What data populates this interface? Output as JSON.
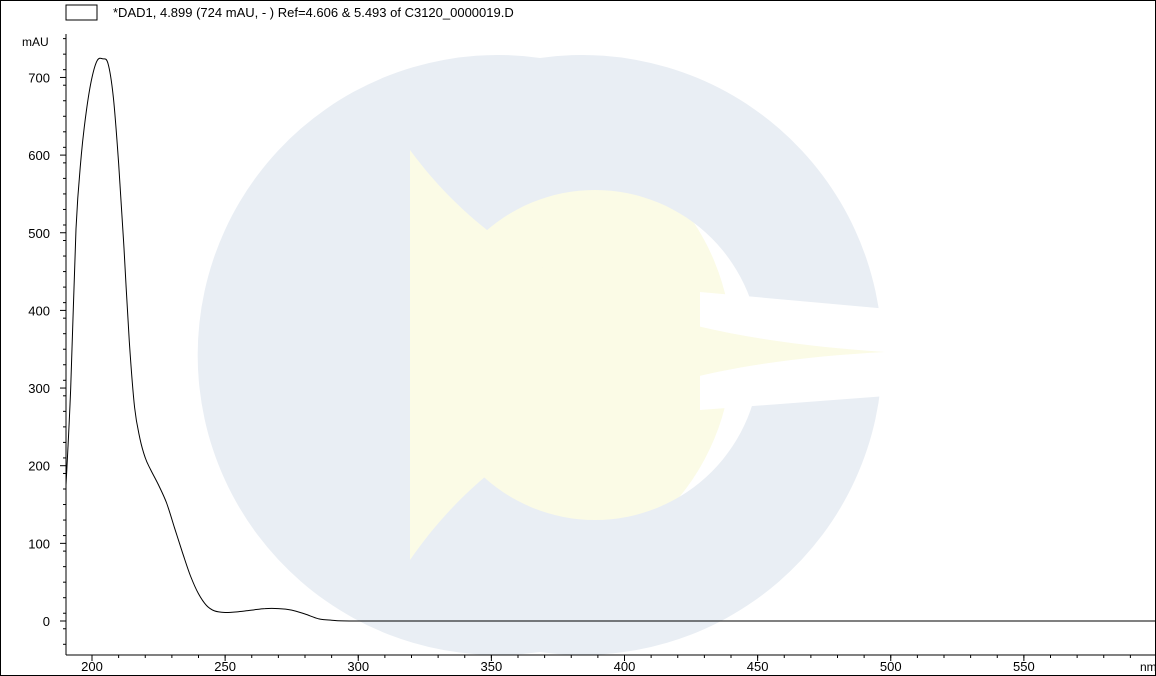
{
  "chart_data": {
    "type": "line",
    "title": "",
    "legend": {
      "entries": [
        "*DAD1, 4.899 (724 mAU, - ) Ref=4.606 & 5.493 of C3120_0000019.D"
      ],
      "placement": "top-left"
    },
    "ylabel": "mAU",
    "xlabel": "nm",
    "xlim": [
      190,
      600
    ],
    "ylim": [
      -40,
      760
    ],
    "x_ticks": [
      200,
      250,
      300,
      350,
      400,
      450,
      500,
      550
    ],
    "y_ticks": [
      0,
      100,
      200,
      300,
      400,
      500,
      600,
      700
    ],
    "grid": false,
    "series": [
      {
        "name": "*DAD1, 4.899 (724 mAU, - ) Ref=4.606 & 5.493 of C3120_0000019.D",
        "color": "#000000",
        "x": [
          190,
          192,
          194,
          196,
          198,
          200,
          202,
          204,
          206,
          208,
          210,
          212,
          214,
          216,
          218,
          220,
          222,
          225,
          228,
          231,
          234,
          237,
          240,
          243,
          246,
          250,
          255,
          260,
          265,
          270,
          275,
          280,
          285,
          290,
          300,
          350,
          400,
          450,
          500,
          550,
          600
        ],
        "y": [
          175,
          300,
          505,
          600,
          660,
          700,
          722,
          724,
          718,
          675,
          590,
          480,
          360,
          275,
          235,
          210,
          195,
          175,
          152,
          120,
          88,
          58,
          35,
          20,
          13,
          11,
          12,
          14,
          16,
          16,
          14,
          9,
          3,
          1,
          0,
          0,
          0,
          0,
          0,
          0,
          0
        ]
      }
    ]
  },
  "watermark": {
    "colors": {
      "ring": "#e9eef4",
      "wedge": "#fbfbe6"
    }
  }
}
